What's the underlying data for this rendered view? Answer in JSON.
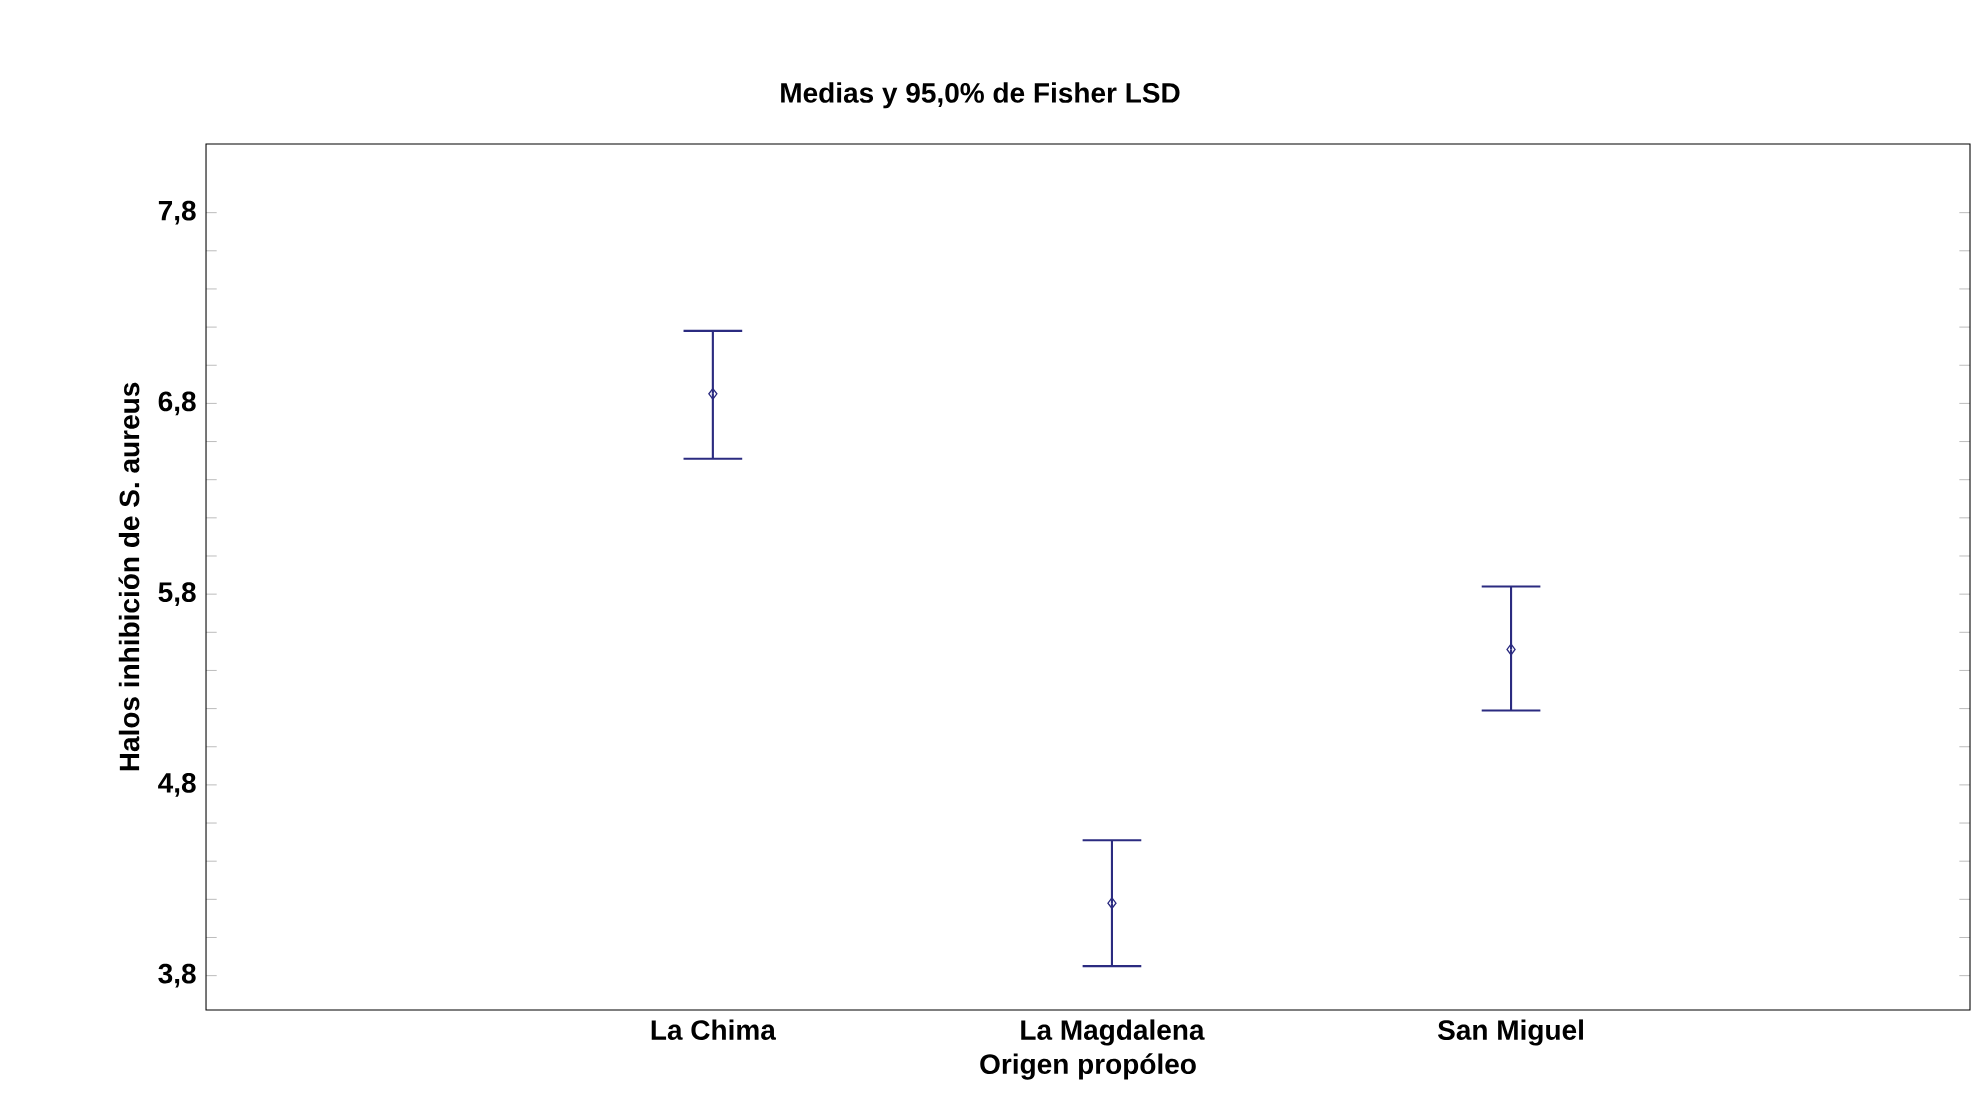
{
  "chart_data": {
    "type": "scatter",
    "title": "Medias y 95,0% de Fisher LSD",
    "xlabel": "Origen propóleo",
    "ylabel": "Halos inhibición de S. aureus",
    "categories": [
      "La Chima",
      "La Magdalena",
      "San Miguel"
    ],
    "values": [
      6.85,
      4.18,
      5.51
    ],
    "errors": [
      [
        6.51,
        7.18
      ],
      [
        3.85,
        4.51
      ],
      [
        5.19,
        5.84
      ]
    ],
    "color": "#2b2b80",
    "marker": "diamond",
    "ylim": [
      3.62,
      8.16
    ],
    "yticks": [
      {
        "value": 3.8,
        "label": "3,8"
      },
      {
        "value": 4.0,
        "label": null
      },
      {
        "value": 4.2,
        "label": null
      },
      {
        "value": 4.4,
        "label": null
      },
      {
        "value": 4.6,
        "label": null
      },
      {
        "value": 4.8,
        "label": "4,8"
      },
      {
        "value": 5.0,
        "label": null
      },
      {
        "value": 5.2,
        "label": null
      },
      {
        "value": 5.4,
        "label": null
      },
      {
        "value": 5.6,
        "label": null
      },
      {
        "value": 5.8,
        "label": "5,8"
      },
      {
        "value": 6.0,
        "label": null
      },
      {
        "value": 6.2,
        "label": null
      },
      {
        "value": 6.4,
        "label": null
      },
      {
        "value": 6.6,
        "label": null
      },
      {
        "value": 6.8,
        "label": "6,8"
      },
      {
        "value": 7.0,
        "label": null
      },
      {
        "value": 7.2,
        "label": null
      },
      {
        "value": 7.4,
        "label": null
      },
      {
        "value": 7.6,
        "label": null
      },
      {
        "value": 7.8,
        "label": "7,8"
      }
    ]
  }
}
